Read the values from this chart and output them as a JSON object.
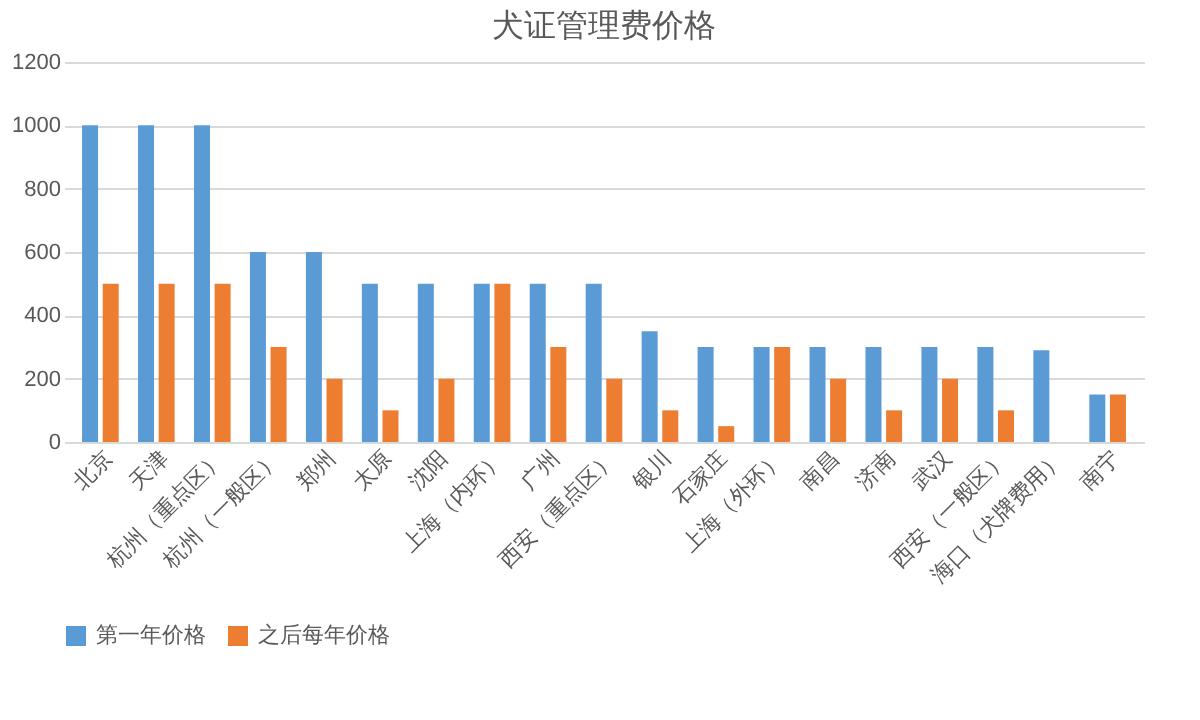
{
  "chart_data": {
    "type": "bar",
    "title": "犬证管理费价格",
    "categories": [
      "北京",
      "天津",
      "杭州（重点区）",
      "杭州（一般区）",
      "郑州",
      "太原",
      "沈阳",
      "上海（内环）",
      "广州",
      "西安（重点区）",
      "银川",
      "石家庄",
      "上海（外环）",
      "南昌",
      "济南",
      "武汉",
      "西安（一般区）",
      "海口（犬牌费用）",
      "南宁"
    ],
    "series": [
      {
        "name": "第一年价格",
        "color": "#5b9bd5",
        "values": [
          1000,
          1000,
          1000,
          600,
          600,
          500,
          500,
          500,
          500,
          500,
          350,
          300,
          300,
          300,
          300,
          300,
          300,
          290,
          150
        ]
      },
      {
        "name": "之后每年价格",
        "color": "#ed7d31",
        "values": [
          500,
          500,
          500,
          300,
          200,
          100,
          200,
          500,
          300,
          200,
          100,
          50,
          300,
          200,
          100,
          200,
          100,
          null,
          150
        ]
      }
    ],
    "ylim": [
      0,
      1200
    ],
    "yticks": [
      0,
      200,
      400,
      600,
      800,
      1000,
      1200
    ],
    "grid": "y",
    "legend": "bottom"
  }
}
